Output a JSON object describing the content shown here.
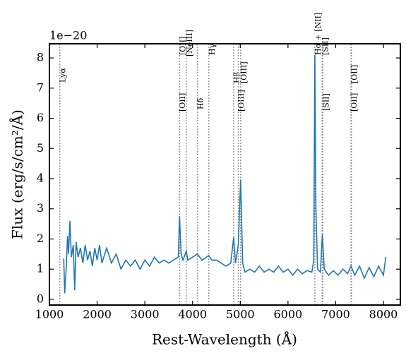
{
  "chart_data": {
    "type": "line",
    "offset_text": "1e−20",
    "x_label": "Rest-Wavelength (Å)",
    "y_label": "Flux (erg/s/cm²/Å)",
    "xlim": [
      1000,
      8355
    ],
    "ylim": [
      -0.19,
      8.47
    ],
    "xticks": [
      1000,
      2000,
      3000,
      4000,
      5000,
      6000,
      7000,
      8000
    ],
    "yticks": [
      0,
      1,
      2,
      3,
      4,
      5,
      6,
      7,
      8
    ],
    "series": [
      {
        "color": "#1f77b4",
        "x": [
          1300,
          1320,
          1350,
          1380,
          1400,
          1430,
          1460,
          1500,
          1530,
          1560,
          1600,
          1650,
          1700,
          1750,
          1800,
          1850,
          1900,
          1950,
          2000,
          2050,
          2100,
          2200,
          2300,
          2400,
          2500,
          2600,
          2700,
          2800,
          2900,
          3000,
          3100,
          3200,
          3300,
          3400,
          3500,
          3600,
          3700,
          3727,
          3760,
          3800,
          3869,
          3900,
          4000,
          4100,
          4200,
          4341,
          4400,
          4500,
          4600,
          4700,
          4800,
          4861,
          4900,
          4959,
          5007,
          5050,
          5100,
          5200,
          5300,
          5400,
          5500,
          5600,
          5700,
          5800,
          5900,
          6000,
          6100,
          6200,
          6300,
          6400,
          6500,
          6540,
          6563,
          6585,
          6620,
          6680,
          6720,
          6760,
          6850,
          6950,
          7050,
          7150,
          7250,
          7320,
          7400,
          7500,
          7600,
          7700,
          7800,
          7900,
          8000,
          8050
        ],
        "values": [
          1.35,
          0.2,
          1.0,
          2.1,
          1.5,
          2.6,
          1.4,
          1.8,
          0.3,
          1.9,
          1.4,
          1.7,
          1.2,
          1.8,
          1.3,
          1.6,
          1.1,
          1.7,
          1.3,
          1.8,
          1.2,
          1.7,
          1.2,
          1.5,
          1.0,
          1.3,
          1.1,
          1.3,
          1.0,
          1.3,
          1.1,
          1.4,
          1.2,
          1.3,
          1.2,
          1.3,
          1.4,
          2.75,
          1.5,
          1.3,
          1.6,
          1.3,
          1.4,
          1.5,
          1.3,
          1.45,
          1.3,
          1.3,
          1.2,
          1.1,
          1.2,
          2.05,
          1.2,
          1.8,
          3.95,
          1.2,
          0.9,
          1.0,
          0.9,
          1.1,
          0.9,
          1.0,
          0.9,
          1.1,
          0.9,
          1.0,
          0.8,
          1.0,
          0.85,
          0.95,
          0.9,
          1.3,
          8.1,
          3.0,
          1.0,
          0.9,
          2.15,
          1.0,
          0.8,
          0.95,
          0.8,
          1.0,
          0.85,
          1.1,
          0.8,
          1.1,
          0.7,
          1.05,
          0.75,
          1.1,
          0.8,
          1.4
        ]
      }
    ],
    "lines": [
      {
        "wavelength": 1216,
        "label": "Lyα"
      },
      {
        "wavelength": 3726,
        "label": "[OII]"
      },
      {
        "wavelength": 3729,
        "label": "[OII]"
      },
      {
        "wavelength": 3869,
        "label": "[NeIII]"
      },
      {
        "wavelength": 4102,
        "label": "Hδ"
      },
      {
        "wavelength": 4341,
        "label": "Hγ"
      },
      {
        "wavelength": 4861,
        "label": "Hβ"
      },
      {
        "wavelength": 4959,
        "label": "[OIII]"
      },
      {
        "wavelength": 5007,
        "label": "[OIII]"
      },
      {
        "wavelength": 6563,
        "label": "Hα + [NII]"
      },
      {
        "wavelength": 6717,
        "label": "[SII]"
      },
      {
        "wavelength": 6731,
        "label": "[SII]"
      },
      {
        "wavelength": 7320,
        "label": "[OII]"
      },
      {
        "wavelength": 7330,
        "label": "[OII]"
      }
    ]
  }
}
